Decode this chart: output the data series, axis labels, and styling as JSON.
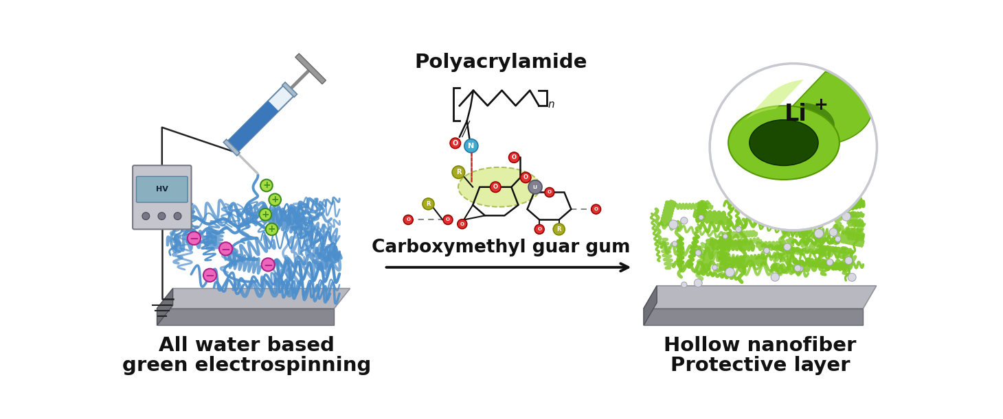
{
  "background_color": "#ffffff",
  "left_label_line1": "All water based",
  "left_label_line2": "green electrospinning",
  "middle_label_top": "Polyacrylamide",
  "middle_label_bottom": "Carboxymethyl guar gum",
  "right_label_line1": "Hollow nanofiber",
  "right_label_line2": "Protective layer",
  "arrow_color": "#111111",
  "label_fontsize": 21,
  "label_fontweight": "bold",
  "fig_width": 14.6,
  "fig_height": 6.11,
  "fiber_blue": "#4d8fcc",
  "fiber_green": "#7dc623",
  "plus_fill": "#a8dc44",
  "plus_edge": "#3a8c1a",
  "minus_fill": "#ee66bb",
  "minus_edge": "#aa2288",
  "atom_red": "#e03030",
  "atom_cyan": "#44aacc",
  "atom_olive": "#aaaa22",
  "atom_gray": "#888899",
  "platform_top": "#b8b8c0",
  "platform_front": "#888890",
  "platform_side": "#707078"
}
